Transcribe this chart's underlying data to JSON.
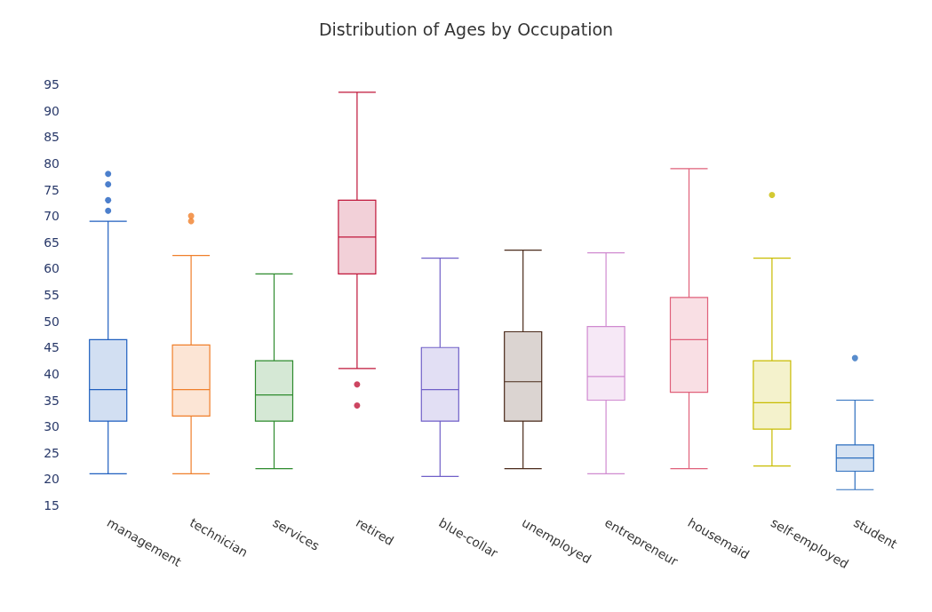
{
  "chart_data": {
    "type": "box",
    "title": "Distribution of Ages by Occupation",
    "categories": [
      "management",
      "technician",
      "services",
      "retired",
      "blue-collar",
      "unemployed",
      "entrepreneur",
      "housemaid",
      "self-employed",
      "student"
    ],
    "colors": [
      "#1f5fbf",
      "#f07f2b",
      "#2e8b2e",
      "#c0163a",
      "#7060c8",
      "#4a2a1a",
      "#d08ad0",
      "#e0607a",
      "#c8bc00",
      "#2e6fbf"
    ],
    "boxes": [
      {
        "low": 21,
        "q1": 31,
        "median": 37,
        "q3": 46.5,
        "high": 69,
        "outliers": [
          71,
          73,
          76,
          78
        ]
      },
      {
        "low": 21,
        "q1": 32,
        "median": 37,
        "q3": 45.5,
        "high": 62.5,
        "outliers": [
          69,
          70
        ]
      },
      {
        "low": 22,
        "q1": 31,
        "median": 36,
        "q3": 42.5,
        "high": 59
      },
      {
        "low": 41,
        "q1": 59,
        "median": 66,
        "q3": 73,
        "high": 93.5,
        "outliers": [
          34,
          38
        ]
      },
      {
        "low": 20.5,
        "q1": 31,
        "median": 37,
        "q3": 45,
        "high": 62
      },
      {
        "low": 22,
        "q1": 31,
        "median": 38.5,
        "q3": 48,
        "high": 63.5
      },
      {
        "low": 21,
        "q1": 35,
        "median": 39.5,
        "q3": 49,
        "high": 63
      },
      {
        "low": 22,
        "q1": 36.5,
        "median": 46.5,
        "q3": 54.5,
        "high": 79
      },
      {
        "low": 22.5,
        "q1": 29.5,
        "median": 34.5,
        "q3": 42.5,
        "high": 62,
        "outliers": [
          74
        ]
      },
      {
        "low": 18,
        "q1": 21.5,
        "median": 24,
        "q3": 26.5,
        "high": 35,
        "outliers": [
          43
        ]
      }
    ],
    "ylim": [
      15,
      95
    ],
    "yticks": [
      15,
      20,
      25,
      30,
      35,
      40,
      45,
      50,
      55,
      60,
      65,
      70,
      75,
      80,
      85,
      90,
      95
    ],
    "grid": false
  }
}
